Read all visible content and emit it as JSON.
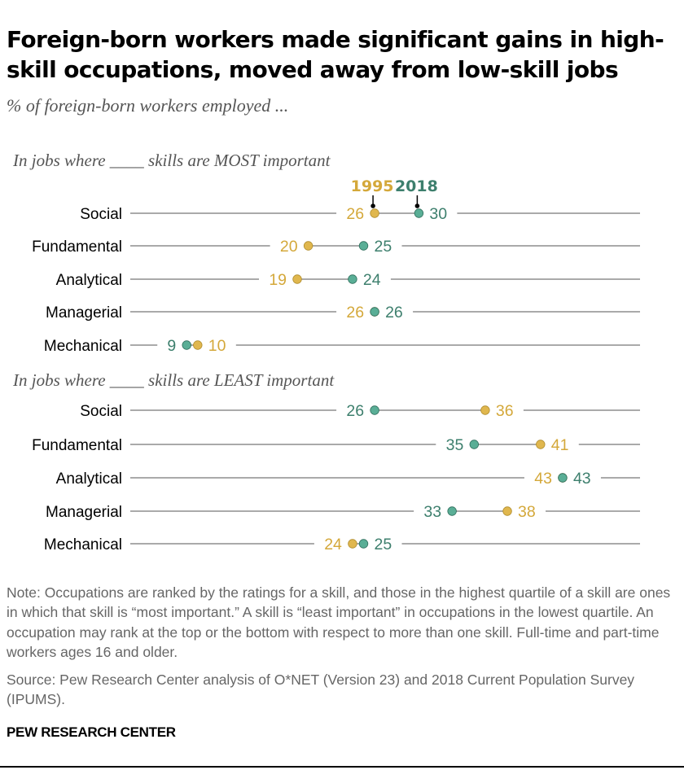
{
  "title": "Foreign-born workers made significant gains in high-skill occupations, moved away from low-skill jobs",
  "subtitle": "% of foreign-born workers employed ...",
  "colors": {
    "series_1995": "#e0b74e",
    "series_2018": "#5aae96",
    "label_1995": "#d4a83a",
    "label_2018": "#3d7f6d",
    "axis_line": "#777777"
  },
  "chart_data": {
    "type": "dot-plot",
    "x_range": [
      0,
      50
    ],
    "series": [
      {
        "name": "1995",
        "color": "#e0b74e"
      },
      {
        "name": "2018",
        "color": "#5aae96"
      }
    ],
    "sections": [
      {
        "label": "In jobs where ____ skills are MOST important",
        "rows": [
          {
            "category": "Social",
            "v1995": 26,
            "v2018": 30
          },
          {
            "category": "Fundamental",
            "v1995": 20,
            "v2018": 25
          },
          {
            "category": "Analytical",
            "v1995": 19,
            "v2018": 24
          },
          {
            "category": "Managerial",
            "v1995": 26,
            "v2018": 26
          },
          {
            "category": "Mechanical",
            "v1995": 10,
            "v2018": 9
          }
        ]
      },
      {
        "label": "In jobs where ____ skills are LEAST important",
        "rows": [
          {
            "category": "Social",
            "v1995": 36,
            "v2018": 26
          },
          {
            "category": "Fundamental",
            "v1995": 41,
            "v2018": 35
          },
          {
            "category": "Analytical",
            "v1995": 43,
            "v2018": 43
          },
          {
            "category": "Managerial",
            "v1995": 38,
            "v2018": 33
          },
          {
            "category": "Mechanical",
            "v1995": 24,
            "v2018": 25
          }
        ]
      }
    ]
  },
  "note": "Note: Occupations are ranked by the ratings for a skill, and those in the highest quartile of a skill are ones in which that skill is “most important.” A skill is “least important” in occupations in the lowest quartile. An occupation may rank at the top or the bottom with respect to more than one skill. Full-time and part-time workers ages 16 and older.",
  "source": "Source: Pew Research Center analysis of O*NET (Version 23) and 2018 Current Population Survey (IPUMS).",
  "brand": "PEW RESEARCH CENTER"
}
